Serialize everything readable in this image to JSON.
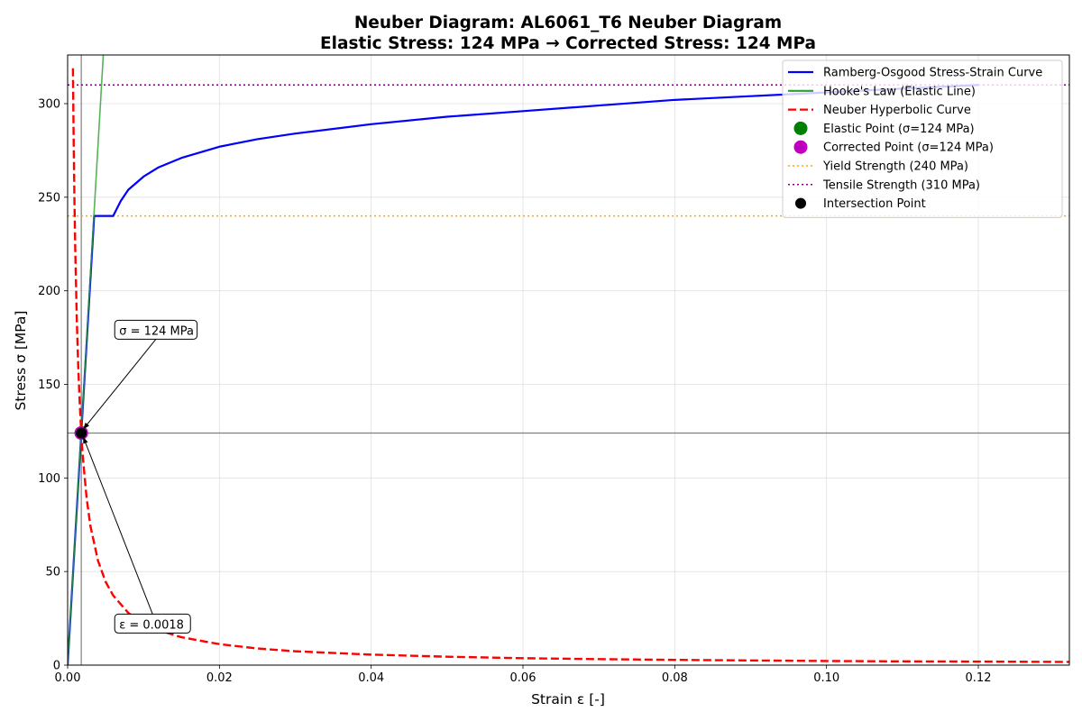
{
  "chart_data": {
    "type": "line",
    "title": "Neuber Diagram: AL6061_T6 Neuber Diagram",
    "subtitle": "Elastic Stress: 124 MPa → Corrected Stress: 124 MPa",
    "xlabel": "Strain ε [-]",
    "ylabel": "Stress σ [MPa]",
    "xlim": [
      0,
      0.132
    ],
    "ylim": [
      0,
      326
    ],
    "xticks": [
      0.0,
      0.02,
      0.04,
      0.06,
      0.08,
      0.1,
      0.12
    ],
    "xtick_labels": [
      "0.00",
      "0.02",
      "0.04",
      "0.06",
      "0.08",
      "0.10",
      "0.12"
    ],
    "yticks": [
      0,
      50,
      100,
      150,
      200,
      250,
      300
    ],
    "ytick_labels": [
      "0",
      "50",
      "100",
      "150",
      "200",
      "250",
      "300"
    ],
    "grid": true,
    "legend_position": "top-right",
    "series": [
      {
        "name": "Ramberg-Osgood Stress-Strain Curve",
        "kind": "line",
        "color": "#0000ff",
        "dash": "solid",
        "x": [
          0,
          0.0018,
          0.0035,
          0.006,
          0.007,
          0.008,
          0.01,
          0.012,
          0.015,
          0.02,
          0.025,
          0.03,
          0.04,
          0.05,
          0.06,
          0.07,
          0.08,
          0.09,
          0.1,
          0.11,
          0.12
        ],
        "y": [
          0,
          124,
          240,
          240,
          248,
          254,
          261,
          266,
          271,
          277,
          281,
          284,
          289,
          293,
          296,
          299,
          302,
          304,
          306,
          308,
          310
        ]
      },
      {
        "name": "Hooke's Law (Elastic Line)",
        "kind": "line",
        "color": "#2ca02c",
        "dash": "solid",
        "x": [
          0,
          0.0047
        ],
        "y": [
          0,
          326
        ]
      },
      {
        "name": "Neuber Hyperbolic Curve",
        "kind": "line",
        "color": "#ff0000",
        "dash": "dashed",
        "x": [
          0.0007,
          0.0008,
          0.0009,
          0.001,
          0.0012,
          0.0014,
          0.0016,
          0.0018,
          0.002,
          0.0025,
          0.003,
          0.004,
          0.005,
          0.006,
          0.008,
          0.01,
          0.012,
          0.015,
          0.02,
          0.025,
          0.03,
          0.04,
          0.05,
          0.06,
          0.07,
          0.08,
          0.09,
          0.1,
          0.11,
          0.12,
          0.132
        ],
        "y": [
          318.9,
          279.0,
          248.0,
          223.2,
          186.0,
          159.4,
          139.5,
          124.0,
          111.6,
          89.3,
          74.4,
          55.8,
          44.6,
          37.2,
          27.9,
          22.3,
          18.6,
          14.9,
          11.2,
          8.9,
          7.4,
          5.6,
          4.5,
          3.7,
          3.2,
          2.8,
          2.5,
          2.2,
          2.0,
          1.9,
          1.7
        ]
      },
      {
        "name": "Elastic Point (σ=124 MPa)",
        "kind": "marker",
        "color": "#008000",
        "x": [
          0.0018
        ],
        "y": [
          124
        ]
      },
      {
        "name": "Corrected Point (σ=124 MPa)",
        "kind": "marker",
        "color": "#bf00bf",
        "x": [
          0.0018
        ],
        "y": [
          124
        ]
      },
      {
        "name": "Yield Strength (240 MPa)",
        "kind": "hline",
        "color": "#ffa500",
        "dash": "dotted",
        "y": [
          240
        ]
      },
      {
        "name": "Tensile Strength (310 MPa)",
        "kind": "hline",
        "color": "#800080",
        "dash": "dotted",
        "y": [
          310
        ]
      },
      {
        "name": "Intersection Point",
        "kind": "marker-small",
        "color": "#000000",
        "x": [
          0.0018
        ],
        "y": [
          124
        ]
      }
    ],
    "reference_lines": {
      "vertical_x": 0.0018,
      "horizontal_y": 124,
      "color": "#808080"
    },
    "annotations": [
      {
        "text": "σ = 124 MPa",
        "point_x": 0.0018,
        "point_y": 124,
        "label_x": 0.0068,
        "label_y": 178
      },
      {
        "text": "ε = 0.0018",
        "point_x": 0.0018,
        "point_y": 124,
        "label_x": 0.0068,
        "label_y": 21
      }
    ]
  }
}
